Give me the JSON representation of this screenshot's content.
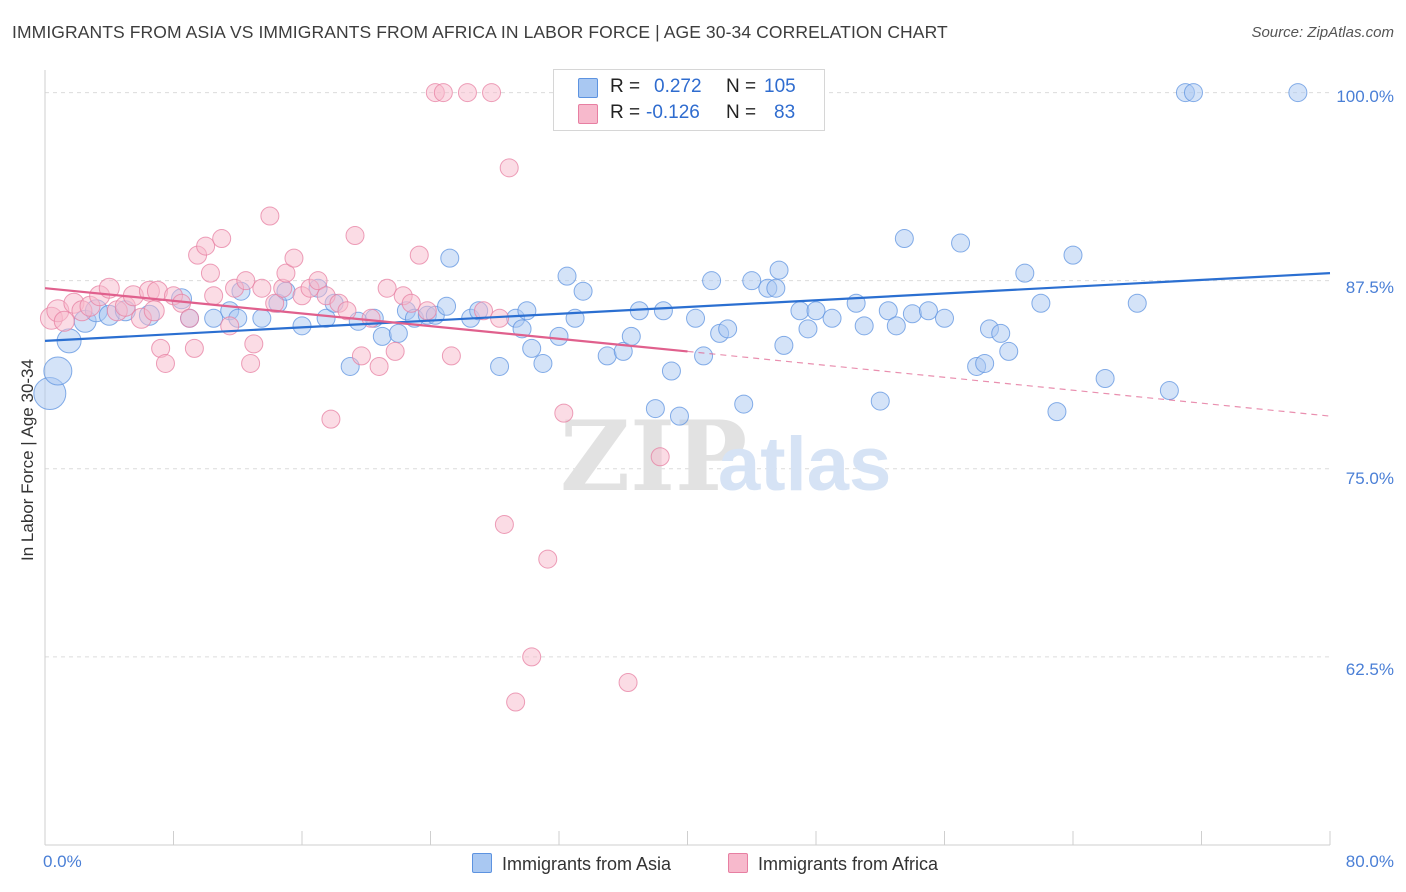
{
  "title": "IMMIGRANTS FROM ASIA VS IMMIGRANTS FROM AFRICA IN LABOR FORCE | AGE 30-34 CORRELATION CHART",
  "source": "Source: ZipAtlas.com",
  "watermark": {
    "zip": "ZIP",
    "atlas": "atlas"
  },
  "legend_stats": {
    "r_label": "R =",
    "n_label": "N =",
    "asia": {
      "r": "0.272",
      "n": "105"
    },
    "africa": {
      "r": "-0.126",
      "n": "83"
    }
  },
  "colors": {
    "asia_fill": "#a9c8f2",
    "asia_stroke": "#5d93e0",
    "asia_line": "#2b6fd1",
    "africa_fill": "#f7b9cc",
    "africa_stroke": "#e77fa2",
    "africa_line": "#e0608d",
    "grid": "#dcdcdc",
    "axis_text": "#4a7fd6"
  },
  "chart_data": {
    "type": "scatter",
    "title": "IMMIGRANTS FROM ASIA VS IMMIGRANTS FROM AFRICA IN LABOR FORCE | AGE 30-34 CORRELATION CHART",
    "xlabel": "",
    "ylabel": "In Labor Force | Age 30-34",
    "xlim": [
      0,
      80
    ],
    "ylim": [
      50,
      101.5
    ],
    "x_tick_labels": [
      "0.0%",
      "80.0%"
    ],
    "y_ticks": [
      62.5,
      75.0,
      87.5,
      100.0
    ],
    "y_tick_labels": [
      "62.5%",
      "75.0%",
      "87.5%",
      "100.0%"
    ],
    "grid": true,
    "legend_position": "top-center and bottom",
    "series": [
      {
        "name": "Immigrants from Asia",
        "r": 0.272,
        "n": 105,
        "trend": {
          "x": [
            0,
            80
          ],
          "y": [
            83.5,
            88.0
          ]
        },
        "points": [
          [
            0.3,
            80.0,
            16
          ],
          [
            0.8,
            81.5,
            14
          ],
          [
            1.5,
            83.5,
            12
          ],
          [
            2.5,
            84.8,
            11
          ],
          [
            3.2,
            85.5,
            11
          ],
          [
            4.0,
            85.2,
            10
          ],
          [
            5.0,
            85.5,
            10
          ],
          [
            6.5,
            85.2,
            10
          ],
          [
            8.5,
            86.3,
            10
          ],
          [
            9.0,
            85.0,
            9
          ],
          [
            10.5,
            85.0,
            9
          ],
          [
            11.5,
            85.5,
            9
          ],
          [
            12.0,
            85.0,
            9
          ],
          [
            12.2,
            86.8,
            9
          ],
          [
            13.5,
            85.0,
            9
          ],
          [
            14.5,
            86.0,
            9
          ],
          [
            15.0,
            86.8,
            9
          ],
          [
            16.0,
            84.5,
            9
          ],
          [
            17.0,
            87.0,
            9
          ],
          [
            17.5,
            85.0,
            9
          ],
          [
            18.0,
            86.0,
            9
          ],
          [
            19.0,
            81.8,
            9
          ],
          [
            19.5,
            84.8,
            9
          ],
          [
            20.5,
            85.0,
            9
          ],
          [
            21.0,
            83.8,
            9
          ],
          [
            22.0,
            84.0,
            9
          ],
          [
            22.5,
            85.5,
            9
          ],
          [
            23.0,
            85.0,
            9
          ],
          [
            23.8,
            85.2,
            9
          ],
          [
            24.3,
            85.2,
            9
          ],
          [
            25.0,
            85.8,
            9
          ],
          [
            25.2,
            89.0,
            9
          ],
          [
            26.5,
            85.0,
            9
          ],
          [
            27.0,
            85.5,
            9
          ],
          [
            28.3,
            81.8,
            9
          ],
          [
            29.3,
            85.0,
            9
          ],
          [
            29.7,
            84.3,
            9
          ],
          [
            30.0,
            85.5,
            9
          ],
          [
            30.3,
            83.0,
            9
          ],
          [
            31.0,
            82.0,
            9
          ],
          [
            32.0,
            83.8,
            9
          ],
          [
            32.5,
            87.8,
            9
          ],
          [
            33.0,
            85.0,
            9
          ],
          [
            33.5,
            86.8,
            9
          ],
          [
            35.0,
            82.5,
            9
          ],
          [
            36.0,
            82.8,
            9
          ],
          [
            36.5,
            83.8,
            9
          ],
          [
            37.0,
            85.5,
            9
          ],
          [
            38.0,
            79.0,
            9
          ],
          [
            38.5,
            85.5,
            9
          ],
          [
            39.0,
            81.5,
            9
          ],
          [
            39.5,
            78.5,
            9
          ],
          [
            40.5,
            85.0,
            9
          ],
          [
            41.0,
            82.5,
            9
          ],
          [
            41.5,
            87.5,
            9
          ],
          [
            42.0,
            84.0,
            9
          ],
          [
            42.5,
            84.3,
            9
          ],
          [
            43.5,
            79.3,
            9
          ],
          [
            44.0,
            87.5,
            9
          ],
          [
            45.0,
            87.0,
            9
          ],
          [
            45.5,
            87.0,
            9
          ],
          [
            45.7,
            88.2,
            9
          ],
          [
            46.0,
            83.2,
            9
          ],
          [
            47.0,
            85.5,
            9
          ],
          [
            47.5,
            84.3,
            9
          ],
          [
            48.0,
            85.5,
            9
          ],
          [
            49.0,
            85.0,
            9
          ],
          [
            50.5,
            86.0,
            9
          ],
          [
            51.0,
            84.5,
            9
          ],
          [
            52.0,
            79.5,
            9
          ],
          [
            52.5,
            85.5,
            9
          ],
          [
            53.0,
            84.5,
            9
          ],
          [
            53.5,
            90.3,
            9
          ],
          [
            54.0,
            85.3,
            9
          ],
          [
            55.0,
            85.5,
            9
          ],
          [
            56.0,
            85.0,
            9
          ],
          [
            57.0,
            90.0,
            9
          ],
          [
            58.0,
            81.8,
            9
          ],
          [
            58.5,
            82.0,
            9
          ],
          [
            58.8,
            84.3,
            9
          ],
          [
            59.5,
            84.0,
            9
          ],
          [
            60.0,
            82.8,
            9
          ],
          [
            61.0,
            88.0,
            9
          ],
          [
            62.0,
            86.0,
            9
          ],
          [
            63.0,
            78.8,
            9
          ],
          [
            64.0,
            89.2,
            9
          ],
          [
            66.0,
            81.0,
            9
          ],
          [
            68.0,
            86.0,
            9
          ],
          [
            70.0,
            80.2,
            9
          ],
          [
            71.0,
            100.0,
            9
          ],
          [
            71.5,
            100.0,
            9
          ],
          [
            78.0,
            100.0,
            9
          ]
        ]
      },
      {
        "name": "Immigrants from Africa",
        "r": -0.126,
        "n": 83,
        "trend": {
          "x": [
            0,
            40
          ],
          "y": [
            87.0,
            82.8
          ]
        },
        "trend_dashed": {
          "x": [
            40,
            80
          ],
          "y": [
            82.8,
            78.5
          ]
        },
        "points": [
          [
            0.4,
            85.0,
            11
          ],
          [
            0.8,
            85.5,
            11
          ],
          [
            1.2,
            84.8,
            10
          ],
          [
            1.8,
            86.0,
            10
          ],
          [
            2.3,
            85.5,
            10
          ],
          [
            2.8,
            85.8,
            10
          ],
          [
            3.4,
            86.5,
            10
          ],
          [
            4.0,
            87.0,
            10
          ],
          [
            4.5,
            85.5,
            10
          ],
          [
            5.0,
            85.8,
            10
          ],
          [
            5.5,
            86.5,
            10
          ],
          [
            6.0,
            85.0,
            10
          ],
          [
            6.5,
            86.8,
            10
          ],
          [
            6.8,
            85.5,
            10
          ],
          [
            7.0,
            86.8,
            10
          ],
          [
            7.2,
            83.0,
            9
          ],
          [
            7.5,
            82.0,
            9
          ],
          [
            8.0,
            86.5,
            9
          ],
          [
            8.5,
            86.0,
            9
          ],
          [
            9.0,
            85.0,
            9
          ],
          [
            9.3,
            83.0,
            9
          ],
          [
            9.5,
            89.2,
            9
          ],
          [
            10.0,
            89.8,
            9
          ],
          [
            10.3,
            88.0,
            9
          ],
          [
            10.5,
            86.5,
            9
          ],
          [
            11.0,
            90.3,
            9
          ],
          [
            11.5,
            84.5,
            9
          ],
          [
            11.8,
            87.0,
            9
          ],
          [
            12.5,
            87.5,
            9
          ],
          [
            12.8,
            82.0,
            9
          ],
          [
            13.0,
            83.3,
            9
          ],
          [
            13.5,
            87.0,
            9
          ],
          [
            14.0,
            91.8,
            9
          ],
          [
            14.3,
            86.0,
            9
          ],
          [
            14.8,
            87.0,
            9
          ],
          [
            15.0,
            88.0,
            9
          ],
          [
            15.5,
            89.0,
            9
          ],
          [
            16.0,
            86.5,
            9
          ],
          [
            16.5,
            87.0,
            9
          ],
          [
            17.0,
            87.5,
            9
          ],
          [
            17.5,
            86.5,
            9
          ],
          [
            17.8,
            78.3,
            9
          ],
          [
            18.3,
            86.0,
            9
          ],
          [
            18.8,
            85.5,
            9
          ],
          [
            19.3,
            90.5,
            9
          ],
          [
            19.7,
            82.5,
            9
          ],
          [
            20.3,
            85.0,
            9
          ],
          [
            20.8,
            81.8,
            9
          ],
          [
            21.3,
            87.0,
            9
          ],
          [
            21.8,
            82.8,
            9
          ],
          [
            22.3,
            86.5,
            9
          ],
          [
            22.8,
            86.0,
            9
          ],
          [
            23.3,
            89.2,
            9
          ],
          [
            23.8,
            85.5,
            9
          ],
          [
            24.3,
            100.0,
            9
          ],
          [
            24.8,
            100.0,
            9
          ],
          [
            25.3,
            82.5,
            9
          ],
          [
            26.3,
            100.0,
            9
          ],
          [
            27.3,
            85.5,
            9
          ],
          [
            27.8,
            100.0,
            9
          ],
          [
            28.3,
            85.0,
            9
          ],
          [
            28.6,
            71.3,
            9
          ],
          [
            28.9,
            95.0,
            9
          ],
          [
            29.3,
            59.5,
            9
          ],
          [
            30.3,
            62.5,
            9
          ],
          [
            31.3,
            69.0,
            9
          ],
          [
            32.3,
            78.7,
            9
          ],
          [
            34.3,
            100.0,
            9
          ],
          [
            36.3,
            60.8,
            9
          ],
          [
            38.3,
            75.8,
            9
          ]
        ]
      }
    ]
  }
}
